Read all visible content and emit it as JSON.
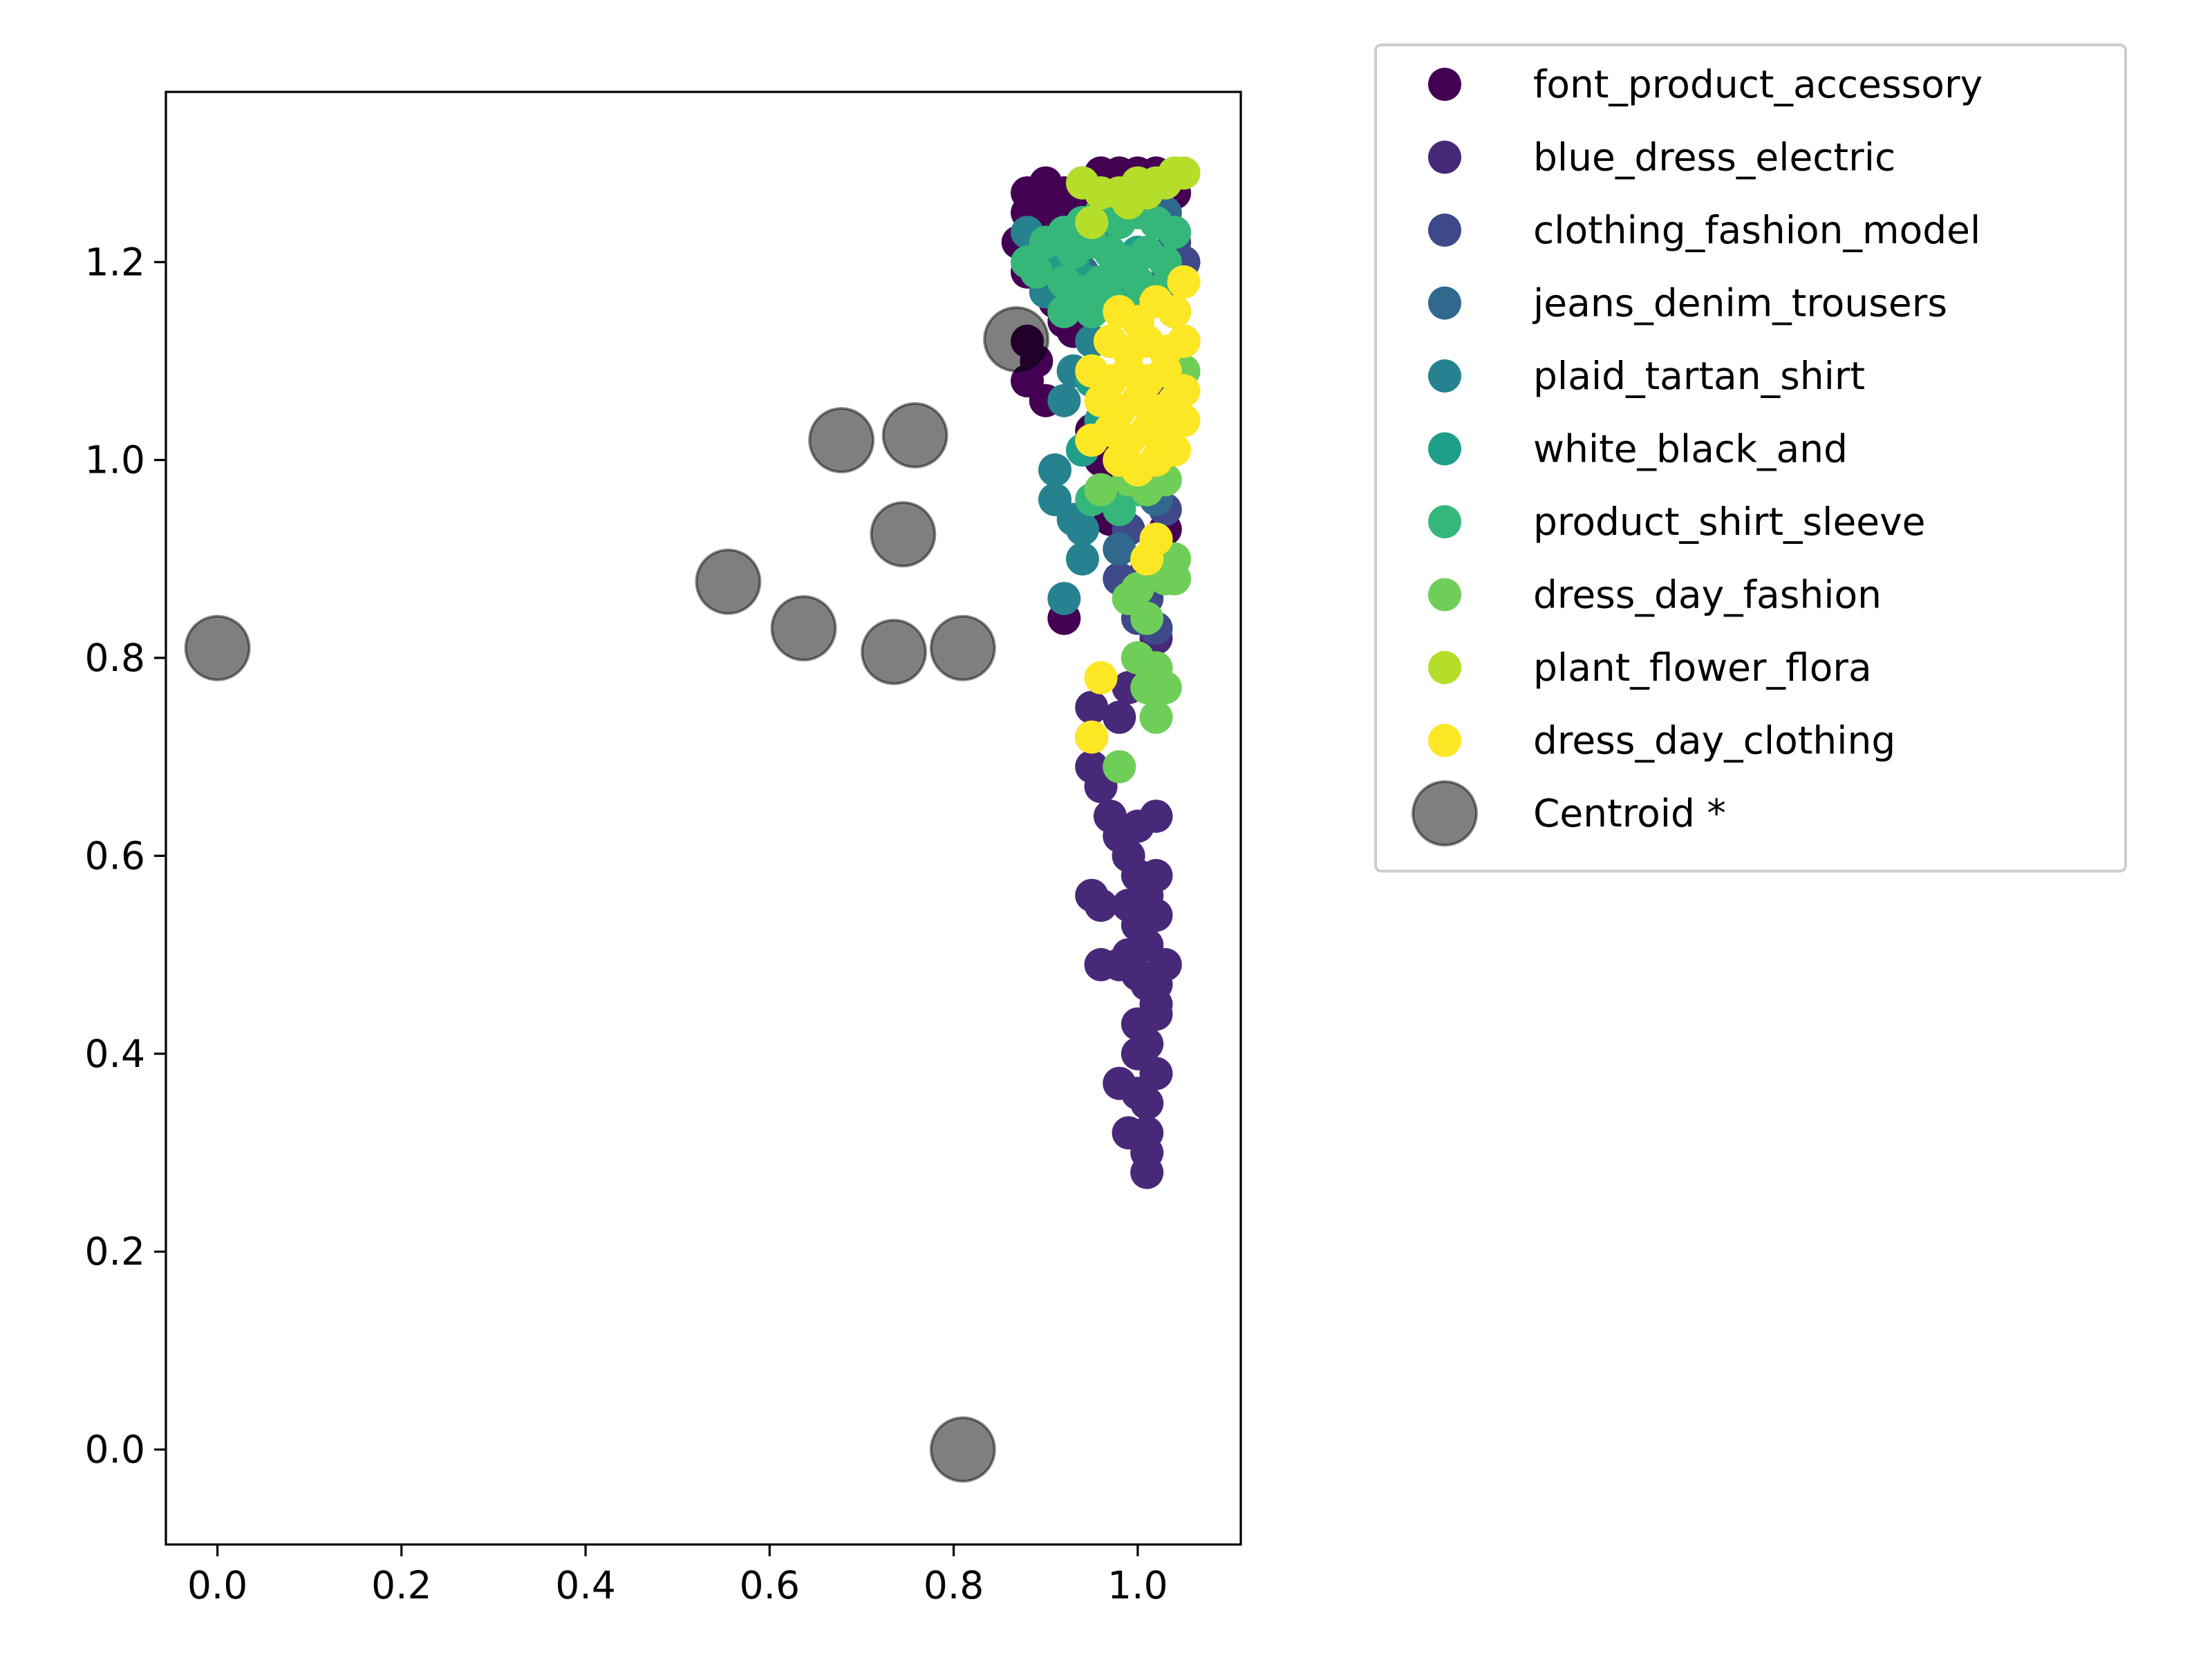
{
  "chart_data": {
    "type": "scatter",
    "title": "",
    "xlabel": "",
    "ylabel": "",
    "xlim": [
      -0.056,
      1.112
    ],
    "ylim": [
      -0.096,
      1.372
    ],
    "xticks": [
      0.0,
      0.2,
      0.4,
      0.6,
      0.8,
      1.0
    ],
    "yticks": [
      0.0,
      0.2,
      0.4,
      0.6,
      0.8,
      1.0,
      1.2
    ],
    "xtick_labels": [
      "0.0",
      "0.2",
      "0.4",
      "0.6",
      "0.8",
      "1.0"
    ],
    "ytick_labels": [
      "0.0",
      "0.2",
      "0.4",
      "0.6",
      "0.8",
      "1.0",
      "1.2"
    ],
    "grid": false,
    "legend_position": "outside-right-top",
    "series": [
      {
        "name": "font_product_accessory",
        "color": "#440154",
        "points": [
          [
            0.88,
            1.27
          ],
          [
            0.89,
            1.26
          ],
          [
            0.9,
            1.28
          ],
          [
            0.91,
            1.25
          ],
          [
            0.92,
            1.27
          ],
          [
            0.93,
            1.26
          ],
          [
            0.94,
            1.28
          ],
          [
            0.95,
            1.27
          ],
          [
            0.96,
            1.29
          ],
          [
            0.97,
            1.28
          ],
          [
            0.98,
            1.29
          ],
          [
            0.99,
            1.28
          ],
          [
            1.0,
            1.29
          ],
          [
            1.01,
            1.28
          ],
          [
            1.02,
            1.29
          ],
          [
            1.03,
            1.28
          ],
          [
            1.04,
            1.27
          ],
          [
            0.88,
            1.25
          ],
          [
            0.89,
            1.23
          ],
          [
            0.9,
            1.22
          ],
          [
            0.87,
            1.22
          ],
          [
            0.88,
            1.19
          ],
          [
            0.9,
            1.2
          ],
          [
            0.91,
            1.16
          ],
          [
            0.92,
            1.14
          ],
          [
            0.93,
            1.13
          ],
          [
            0.95,
            1.15
          ],
          [
            0.88,
            1.12
          ],
          [
            0.89,
            1.1
          ],
          [
            0.88,
            1.08
          ],
          [
            0.9,
            1.06
          ],
          [
            0.95,
            1.03
          ],
          [
            0.96,
            1.0
          ],
          [
            0.97,
            0.98
          ],
          [
            1.03,
            0.93
          ],
          [
            0.97,
            0.94
          ],
          [
            0.92,
            0.84
          ]
        ]
      },
      {
        "name": "blue_dress_electric",
        "color": "#482878",
        "points": [
          [
            1.02,
            0.92
          ],
          [
            1.01,
            0.89
          ],
          [
            1.0,
            0.86
          ],
          [
            1.02,
            0.82
          ],
          [
            1.0,
            0.8
          ],
          [
            0.99,
            0.77
          ],
          [
            0.98,
            0.74
          ],
          [
            0.95,
            0.75
          ],
          [
            0.95,
            0.72
          ],
          [
            0.95,
            0.69
          ],
          [
            0.96,
            0.67
          ],
          [
            0.97,
            0.64
          ],
          [
            0.98,
            0.62
          ],
          [
            1.0,
            0.63
          ],
          [
            1.02,
            0.64
          ],
          [
            0.99,
            0.6
          ],
          [
            1.0,
            0.58
          ],
          [
            1.01,
            0.56
          ],
          [
            1.02,
            0.58
          ],
          [
            0.99,
            0.55
          ],
          [
            1.0,
            0.53
          ],
          [
            1.01,
            0.51
          ],
          [
            1.02,
            0.54
          ],
          [
            0.95,
            0.56
          ],
          [
            0.96,
            0.55
          ],
          [
            0.99,
            0.5
          ],
          [
            1.0,
            0.48
          ],
          [
            1.01,
            0.47
          ],
          [
            1.02,
            0.45
          ],
          [
            0.96,
            0.49
          ],
          [
            0.98,
            0.49
          ],
          [
            1.0,
            0.43
          ],
          [
            1.01,
            0.41
          ],
          [
            1.02,
            0.38
          ],
          [
            1.0,
            0.4
          ],
          [
            0.98,
            0.37
          ],
          [
            1.0,
            0.36
          ],
          [
            1.01,
            0.35
          ],
          [
            1.01,
            0.32
          ],
          [
            0.99,
            0.32
          ],
          [
            1.01,
            0.3
          ],
          [
            1.01,
            0.28
          ],
          [
            1.02,
            0.44
          ],
          [
            1.02,
            0.47
          ],
          [
            1.03,
            0.49
          ]
        ]
      },
      {
        "name": "clothing_fashion_model",
        "color": "#3e4989",
        "points": [
          [
            1.04,
            1.22
          ],
          [
            1.05,
            1.2
          ],
          [
            1.03,
            1.18
          ],
          [
            1.04,
            1.15
          ],
          [
            1.05,
            1.12
          ],
          [
            1.03,
            1.08
          ],
          [
            0.98,
            0.88
          ],
          [
            1.0,
            0.84
          ],
          [
            1.02,
            0.83
          ],
          [
            1.01,
            0.86
          ],
          [
            0.99,
            0.93
          ],
          [
            1.03,
            0.95
          ]
        ]
      },
      {
        "name": "jeans_denim_trousers",
        "color": "#31688e",
        "points": [
          [
            0.97,
            1.24
          ],
          [
            1.03,
            1.25
          ],
          [
            1.04,
            1.23
          ],
          [
            0.94,
            1.19
          ],
          [
            1.02,
            0.96
          ],
          [
            0.98,
            0.91
          ]
        ]
      },
      {
        "name": "plaid_tartan_shirt",
        "color": "#26828e",
        "points": [
          [
            0.88,
            1.23
          ],
          [
            0.9,
            1.17
          ],
          [
            0.93,
            1.09
          ],
          [
            0.92,
            1.06
          ],
          [
            0.91,
            0.99
          ],
          [
            0.91,
            0.96
          ],
          [
            0.93,
            0.94
          ],
          [
            0.94,
            0.93
          ],
          [
            0.94,
            0.9
          ],
          [
            0.92,
            0.86
          ],
          [
            0.95,
            1.12
          ]
        ]
      },
      {
        "name": "white_black_and",
        "color": "#1f9e89",
        "points": [
          [
            0.91,
            1.21
          ],
          [
            0.93,
            1.2
          ],
          [
            0.95,
            1.18
          ],
          [
            0.98,
            1.17
          ],
          [
            1.0,
            1.21
          ],
          [
            0.97,
            1.12
          ],
          [
            0.95,
            1.08
          ],
          [
            0.96,
            1.04
          ],
          [
            0.94,
            1.01
          ]
        ]
      },
      {
        "name": "product_shirt_sleeve",
        "color": "#35b779",
        "points": [
          [
            0.88,
            1.2
          ],
          [
            0.89,
            1.19
          ],
          [
            0.9,
            1.22
          ],
          [
            0.92,
            1.23
          ],
          [
            0.94,
            1.24
          ],
          [
            0.96,
            1.25
          ],
          [
            0.98,
            1.24
          ],
          [
            1.0,
            1.25
          ],
          [
            1.02,
            1.24
          ],
          [
            1.04,
            1.23
          ],
          [
            0.93,
            1.21
          ],
          [
            0.95,
            1.22
          ],
          [
            0.97,
            1.21
          ],
          [
            0.99,
            1.2
          ],
          [
            1.01,
            1.21
          ],
          [
            1.03,
            1.2
          ],
          [
            0.92,
            1.18
          ],
          [
            0.94,
            1.17
          ],
          [
            0.96,
            1.18
          ],
          [
            0.98,
            1.19
          ],
          [
            1.0,
            1.18
          ],
          [
            1.02,
            1.17
          ],
          [
            0.95,
            1.15
          ],
          [
            0.97,
            1.16
          ],
          [
            0.99,
            1.15
          ],
          [
            0.92,
            1.15
          ],
          [
            0.95,
            0.96
          ],
          [
            0.98,
            0.95
          ],
          [
            1.0,
            0.97
          ]
        ]
      },
      {
        "name": "dress_day_fashion",
        "color": "#6ece58",
        "points": [
          [
            0.96,
            0.97
          ],
          [
            0.99,
            0.98
          ],
          [
            1.01,
            0.97
          ],
          [
            1.03,
            0.98
          ],
          [
            1.04,
            0.9
          ],
          [
            1.03,
            0.88
          ],
          [
            1.0,
            0.87
          ],
          [
            0.99,
            0.86
          ],
          [
            1.01,
            0.84
          ],
          [
            1.04,
            0.88
          ],
          [
            1.0,
            0.8
          ],
          [
            1.02,
            0.79
          ],
          [
            1.03,
            0.77
          ],
          [
            1.01,
            0.77
          ],
          [
            1.02,
            0.74
          ],
          [
            0.98,
            0.69
          ],
          [
            1.05,
            1.09
          ]
        ]
      },
      {
        "name": "plant_flower_flora",
        "color": "#b5de2b",
        "points": [
          [
            0.94,
            1.28
          ],
          [
            0.96,
            1.27
          ],
          [
            0.98,
            1.27
          ],
          [
            1.0,
            1.28
          ],
          [
            1.01,
            1.27
          ],
          [
            1.02,
            1.28
          ],
          [
            1.03,
            1.28
          ],
          [
            1.04,
            1.29
          ],
          [
            1.05,
            1.29
          ],
          [
            0.99,
            1.26
          ],
          [
            0.95,
            1.24
          ]
        ]
      },
      {
        "name": "dress_day_clothing",
        "color": "#fde725",
        "points": [
          [
            0.98,
            1.15
          ],
          [
            1.0,
            1.14
          ],
          [
            1.02,
            1.16
          ],
          [
            1.04,
            1.15
          ],
          [
            1.05,
            1.18
          ],
          [
            0.97,
            1.12
          ],
          [
            0.99,
            1.11
          ],
          [
            1.01,
            1.12
          ],
          [
            1.03,
            1.11
          ],
          [
            1.05,
            1.12
          ],
          [
            0.95,
            1.09
          ],
          [
            0.97,
            1.08
          ],
          [
            0.99,
            1.09
          ],
          [
            1.01,
            1.08
          ],
          [
            1.03,
            1.09
          ],
          [
            1.05,
            1.07
          ],
          [
            0.96,
            1.06
          ],
          [
            0.98,
            1.05
          ],
          [
            1.0,
            1.06
          ],
          [
            1.02,
            1.05
          ],
          [
            1.04,
            1.06
          ],
          [
            0.97,
            1.03
          ],
          [
            0.99,
            1.02
          ],
          [
            1.01,
            1.03
          ],
          [
            1.03,
            1.02
          ],
          [
            1.05,
            1.04
          ],
          [
            0.95,
            1.02
          ],
          [
            0.98,
            1.0
          ],
          [
            1.0,
            0.99
          ],
          [
            1.02,
            1.0
          ],
          [
            1.04,
            1.01
          ],
          [
            1.02,
            0.92
          ],
          [
            1.01,
            0.9
          ],
          [
            0.96,
            0.78
          ],
          [
            0.95,
            0.72
          ]
        ]
      },
      {
        "name": "Centroid *",
        "color": "#000000",
        "opacity": 0.5,
        "size": "large",
        "points": [
          [
            0.0,
            0.81
          ],
          [
            0.555,
            0.877
          ],
          [
            0.637,
            0.83
          ],
          [
            0.678,
            1.02
          ],
          [
            0.745,
            0.925
          ],
          [
            0.758,
            1.025
          ],
          [
            0.735,
            0.806
          ],
          [
            0.81,
            0.81
          ],
          [
            0.868,
            1.122
          ],
          [
            0.81,
            0.0
          ]
        ]
      }
    ]
  }
}
